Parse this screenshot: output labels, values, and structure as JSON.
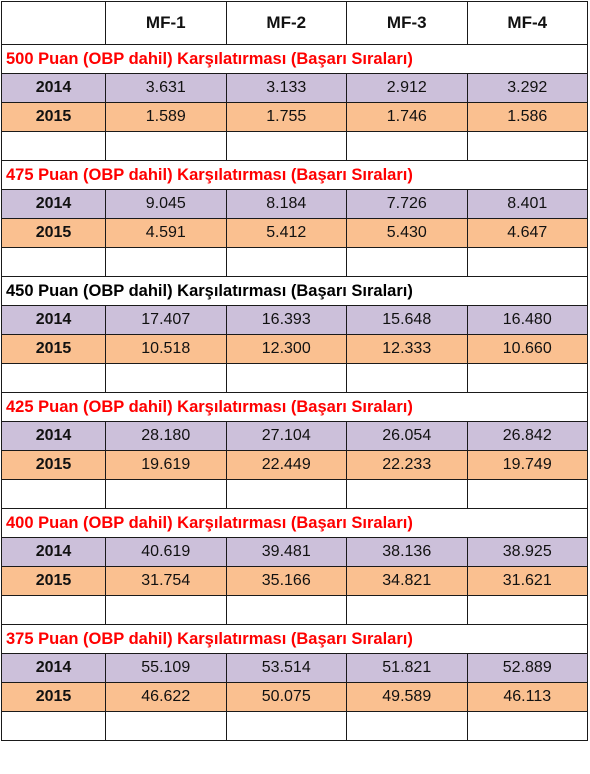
{
  "header": {
    "corner": "",
    "columns": [
      "MF-1",
      "MF-2",
      "MF-3",
      "MF-4"
    ]
  },
  "colors": {
    "row_2014": "#ccc0da",
    "row_2015": "#fac090",
    "section_title_red": "#ff0000",
    "section_title_black": "#000000"
  },
  "sections": [
    {
      "title": "500 Puan (OBP dahil) Karşılatırması (Başarı Sıraları)",
      "title_color": "red",
      "rows": [
        {
          "year": "2014",
          "values": [
            "3.631",
            "3.133",
            "2.912",
            "3.292"
          ]
        },
        {
          "year": "2015",
          "values": [
            "1.589",
            "1.755",
            "1.746",
            "1.586"
          ]
        }
      ]
    },
    {
      "title": "475 Puan (OBP dahil) Karşılatırması  (Başarı Sıraları)",
      "title_color": "red",
      "rows": [
        {
          "year": "2014",
          "values": [
            "9.045",
            "8.184",
            "7.726",
            "8.401"
          ]
        },
        {
          "year": "2015",
          "values": [
            "4.591",
            "5.412",
            "5.430",
            "4.647"
          ]
        }
      ]
    },
    {
      "title": "450 Puan (OBP dahil) Karşılatırması  (Başarı Sıraları)",
      "title_color": "black",
      "rows": [
        {
          "year": "2014",
          "values": [
            "17.407",
            "16.393",
            "15.648",
            "16.480"
          ]
        },
        {
          "year": "2015",
          "values": [
            "10.518",
            "12.300",
            "12.333",
            "10.660"
          ]
        }
      ]
    },
    {
      "title": "425 Puan (OBP dahil) Karşılatırması  (Başarı Sıraları)",
      "title_color": "red",
      "rows": [
        {
          "year": "2014",
          "values": [
            "28.180",
            "27.104",
            "26.054",
            "26.842"
          ]
        },
        {
          "year": "2015",
          "values": [
            "19.619",
            "22.449",
            "22.233",
            "19.749"
          ]
        }
      ]
    },
    {
      "title": "400 Puan (OBP dahil) Karşılatırması  (Başarı Sıraları)",
      "title_color": "red",
      "rows": [
        {
          "year": "2014",
          "values": [
            "40.619",
            "39.481",
            "38.136",
            "38.925"
          ]
        },
        {
          "year": "2015",
          "values": [
            "31.754",
            "35.166",
            "34.821",
            "31.621"
          ]
        }
      ]
    },
    {
      "title": "375 Puan (OBP dahil) Karşılatırması  (Başarı Sıraları)",
      "title_color": "red",
      "rows": [
        {
          "year": "2014",
          "values": [
            "55.109",
            "53.514",
            "51.821",
            "52.889"
          ]
        },
        {
          "year": "2015",
          "values": [
            "46.622",
            "50.075",
            "49.589",
            "46.113"
          ]
        }
      ]
    }
  ]
}
